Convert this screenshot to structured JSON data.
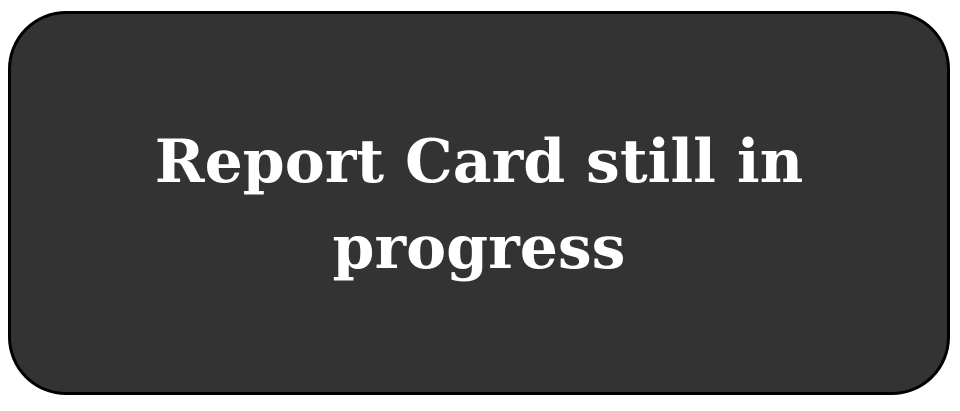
{
  "status_card": {
    "message": "Report Card still in progress",
    "background_color": "#333333",
    "text_color": "#ffffff",
    "border_color": "#000000"
  }
}
